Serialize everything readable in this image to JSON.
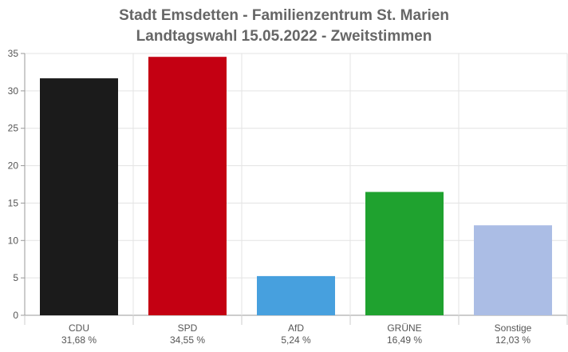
{
  "chart_data": {
    "type": "bar",
    "title": "Stadt Emsdetten - Familienzentrum St. Marien",
    "subtitle": "Landtagswahl 15.05.2022  - Zweitstimmen",
    "xlabel": "",
    "ylabel": "",
    "ylim": [
      0,
      35
    ],
    "yticks": [
      0,
      5,
      10,
      15,
      20,
      25,
      30,
      35
    ],
    "grid": true,
    "categories": [
      "CDU",
      "SPD",
      "AfD",
      "GRÜNE",
      "Sonstige"
    ],
    "values": [
      31.68,
      34.55,
      5.24,
      16.49,
      12.03
    ],
    "value_labels": [
      "31,68 %",
      "34,55 %",
      "5,24 %",
      "16,49 %",
      "12,03 %"
    ],
    "colors": [
      "#1b1b1b",
      "#c40012",
      "#47a0de",
      "#1fa22f",
      "#abbde5"
    ]
  }
}
